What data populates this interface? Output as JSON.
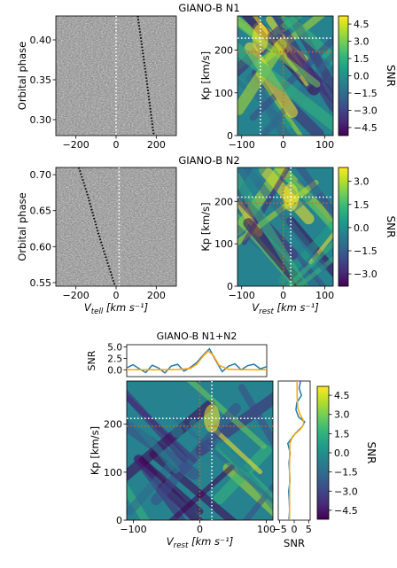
{
  "figure": {
    "row1_title": "GIANO-B N1",
    "row2_title": "GIANO-B N2",
    "row3_title": "GIANO-B N1+N2"
  },
  "colormaps": {
    "viridis": [
      "#440154",
      "#482878",
      "#3e4989",
      "#31688e",
      "#26828e",
      "#1f9e89",
      "#35b779",
      "#6ece58",
      "#b5de2b",
      "#fde725"
    ],
    "gray": [
      "#4a4a4a",
      "#d8d8d8"
    ]
  },
  "chart_data": [
    {
      "id": "n1_phase",
      "type": "heatmap",
      "title": "",
      "xlabel": "",
      "ylabel": "Orbital phase",
      "xlim": [
        -300,
        300
      ],
      "ylim": [
        0.28,
        0.43
      ],
      "xticks": [
        -200,
        0,
        200
      ],
      "yticks": [
        0.3,
        0.35,
        0.4
      ],
      "colormap": "gray",
      "rest_line_x": 0,
      "trail": {
        "x": [
          108,
          130,
          152,
          172,
          188
        ],
        "y": [
          0.43,
          0.39,
          0.35,
          0.31,
          0.28
        ]
      }
    },
    {
      "id": "n1_kp",
      "type": "heatmap",
      "title": "",
      "xlabel": "",
      "ylabel": "Kp [km/s]",
      "xlim": [
        -110,
        120
      ],
      "ylim": [
        0,
        280
      ],
      "xticks": [
        -100,
        0,
        100
      ],
      "yticks": [
        0,
        100,
        200
      ],
      "colormap": "viridis",
      "colorbar": {
        "label": "SNR",
        "ticks": [
          "4.5",
          "3.0",
          "1.5",
          "0.0",
          "−1.5",
          "−3.0",
          "−4.5"
        ],
        "range": [
          -5.2,
          5.2
        ]
      },
      "markers": {
        "white_v": -55,
        "white_kp": 228,
        "orange_v": 0,
        "orange_kp": 196
      }
    },
    {
      "id": "n2_phase",
      "type": "heatmap",
      "title": "",
      "xlabel": "V_tell [km s⁻¹]",
      "ylabel": "Orbital phase",
      "xlim": [
        -300,
        300
      ],
      "ylim": [
        0.545,
        0.71
      ],
      "xticks": [
        -200,
        0,
        200
      ],
      "yticks": [
        0.55,
        0.6,
        0.65,
        0.7
      ],
      "colormap": "gray",
      "rest_line_x": 15,
      "trail": {
        "x": [
          -185,
          -140,
          -90,
          -45,
          -5
        ],
        "y": [
          0.71,
          0.67,
          0.62,
          0.58,
          0.545
        ]
      }
    },
    {
      "id": "n2_kp",
      "type": "heatmap",
      "title": "",
      "xlabel": "V_rest [km s⁻¹]",
      "ylabel": "Kp [km/s]",
      "xlim": [
        -110,
        120
      ],
      "ylim": [
        0,
        280
      ],
      "xticks": [
        -100,
        0,
        100
      ],
      "yticks": [
        0,
        100,
        200
      ],
      "colormap": "viridis",
      "colorbar": {
        "label": "SNR",
        "ticks": [
          "3.0",
          "1.5",
          "0.0",
          "−1.5",
          "−3.0"
        ],
        "range": [
          -3.8,
          3.9
        ]
      },
      "markers": {
        "white_v": 18,
        "white_kp": 210,
        "orange_v": 0,
        "orange_kp": 196
      }
    },
    {
      "id": "combined_kp",
      "type": "heatmap",
      "title": "GIANO-B N1+N2",
      "xlabel": "V_rest [km s⁻¹]",
      "ylabel": "Kp [km/s]",
      "xlim": [
        -110,
        110
      ],
      "ylim": [
        0,
        290
      ],
      "xticks": [
        -100,
        0,
        100
      ],
      "yticks": [
        0,
        100,
        200
      ],
      "colormap": "viridis",
      "colorbar": {
        "label": "SNR",
        "ticks": [
          "4.5",
          "3.0",
          "1.5",
          "0.0",
          "−1.5",
          "−3.0",
          "−4.5"
        ],
        "range": [
          -5.2,
          5.2
        ]
      },
      "markers": {
        "white_v": 18,
        "white_kp": 212,
        "orange_v": 0,
        "orange_kp": 196
      }
    },
    {
      "id": "combined_top",
      "type": "line",
      "ylabel": "SNR",
      "xlim": [
        -110,
        110
      ],
      "ylim": [
        -1.5,
        5.5
      ],
      "yticks": [
        0.0,
        2.5,
        5.0
      ],
      "series": [
        {
          "color": "#1f77b4",
          "x": [
            -110,
            -100,
            -90,
            -80,
            -70,
            -60,
            -50,
            -40,
            -30,
            -20,
            -10,
            0,
            10,
            20,
            30,
            40,
            50,
            60,
            70,
            80,
            90,
            100,
            110
          ],
          "y": [
            0.4,
            1.1,
            0.2,
            -0.6,
            1.0,
            0.4,
            -0.7,
            0.8,
            1.2,
            -0.3,
            0.5,
            1.6,
            3.2,
            4.6,
            2.0,
            -0.4,
            0.8,
            1.3,
            0.0,
            0.9,
            1.2,
            0.2,
            0.7
          ]
        },
        {
          "color": "#ffa500",
          "x": [
            -110,
            -60,
            -30,
            -10,
            0,
            10,
            18,
            26,
            35,
            50,
            80,
            110
          ],
          "y": [
            0.0,
            0.0,
            0.05,
            0.3,
            1.2,
            3.0,
            4.1,
            3.2,
            1.0,
            0.1,
            0.0,
            0.0
          ]
        }
      ]
    },
    {
      "id": "combined_side",
      "type": "line",
      "xlabel": "SNR",
      "xlim": [
        -5.5,
        5.5
      ],
      "ylim": [
        0,
        290
      ],
      "xticks": [
        -5,
        0,
        5
      ],
      "series": [
        {
          "color": "#1f77b4",
          "kp": [
            0,
            20,
            40,
            60,
            80,
            100,
            120,
            140,
            160,
            180,
            195,
            205,
            215,
            230,
            245,
            260,
            275,
            290
          ],
          "snr": [
            -1.8,
            -1.6,
            -1.7,
            -1.9,
            -1.5,
            -1.6,
            -1.8,
            -1.4,
            -2.2,
            0.3,
            2.8,
            3.6,
            1.5,
            0.6,
            0.9,
            2.5,
            1.7,
            2.2
          ]
        },
        {
          "color": "#ffa500",
          "kp": [
            0,
            60,
            120,
            160,
            175,
            190,
            200,
            210,
            220,
            235,
            260,
            290
          ],
          "snr": [
            -1.6,
            -1.6,
            -1.6,
            -1.5,
            -0.5,
            2.2,
            3.3,
            3.0,
            2.0,
            1.2,
            1.0,
            1.0
          ]
        }
      ]
    }
  ]
}
